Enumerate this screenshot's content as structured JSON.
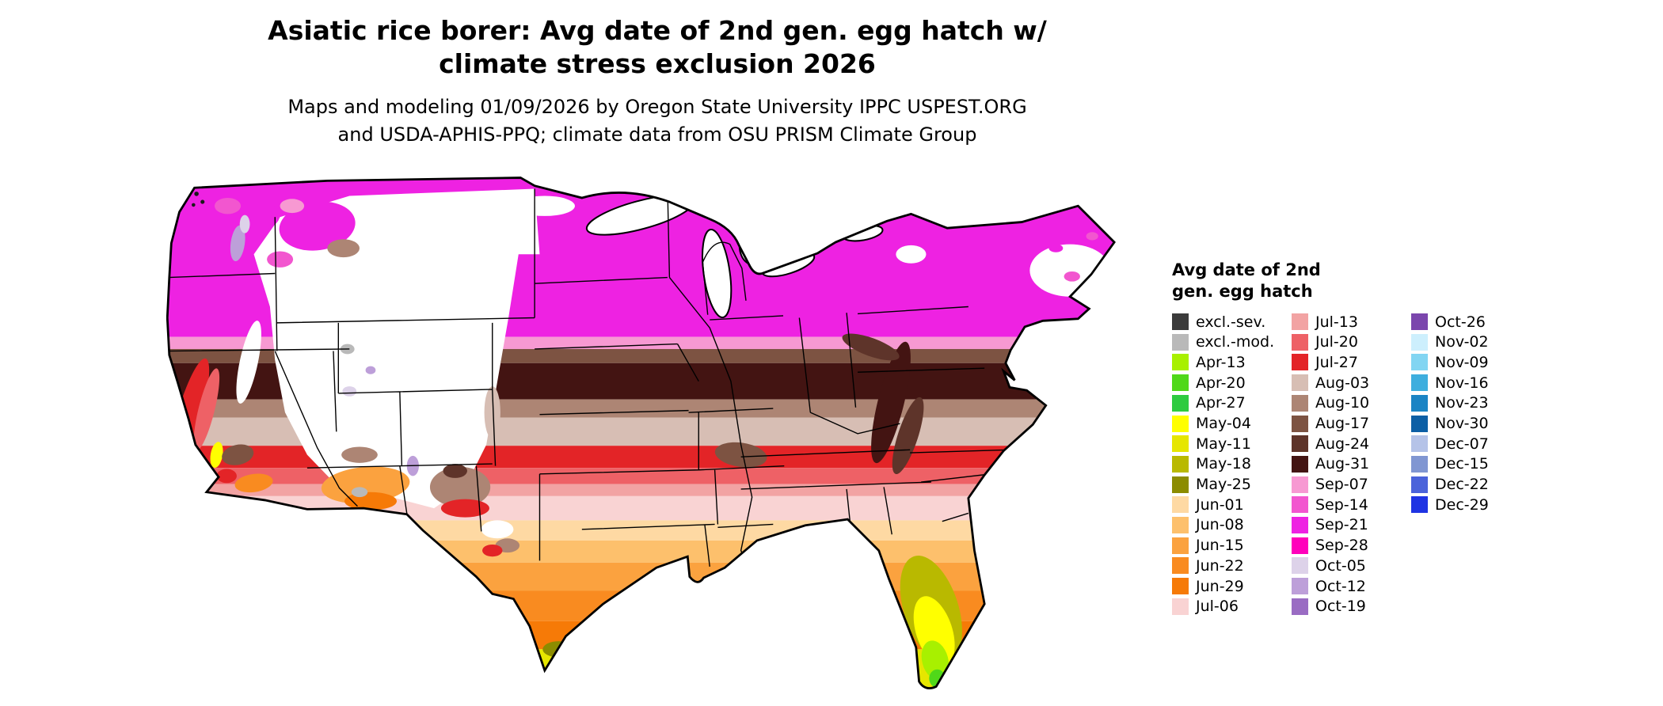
{
  "title": "Asiatic rice borer: Avg date of 2nd gen. egg hatch w/ climate stress exclusion 2026",
  "subtitle": "Maps and modeling 01/09/2026 by Oregon State University IPPC USPEST.ORG and USDA-APHIS-PPQ; climate data from OSU PRISM Climate Group",
  "colors": {
    "background": "#ffffff",
    "outline": "#000000",
    "water": "#ffffff"
  },
  "legend": {
    "heading": "Avg date of 2nd gen. egg hatch",
    "columns": [
      [
        {
          "label": "excl.-sev.",
          "color": "#3b3b3b"
        },
        {
          "label": "excl.-mod.",
          "color": "#b9b9b9"
        },
        {
          "label": "Apr-13",
          "color": "#a8f000"
        },
        {
          "label": "Apr-20",
          "color": "#50d819"
        },
        {
          "label": "Apr-27",
          "color": "#2ecb40"
        },
        {
          "label": "May-04",
          "color": "#ffff00"
        },
        {
          "label": "May-11",
          "color": "#e6e600"
        },
        {
          "label": "May-18",
          "color": "#b9b900"
        },
        {
          "label": "May-25",
          "color": "#8c8c00"
        },
        {
          "label": "Jun-01",
          "color": "#fed9a3"
        },
        {
          "label": "Jun-08",
          "color": "#fdc06c"
        },
        {
          "label": "Jun-15",
          "color": "#fba23f"
        },
        {
          "label": "Jun-22",
          "color": "#f98b20"
        },
        {
          "label": "Jun-29",
          "color": "#f67a07"
        },
        {
          "label": "Jul-06",
          "color": "#f9d3d3"
        }
      ],
      [
        {
          "label": "Jul-13",
          "color": "#f2a3a3"
        },
        {
          "label": "Jul-20",
          "color": "#ee6166"
        },
        {
          "label": "Jul-27",
          "color": "#e32427"
        },
        {
          "label": "Aug-03",
          "color": "#d7beb4"
        },
        {
          "label": "Aug-10",
          "color": "#ad8574"
        },
        {
          "label": "Aug-17",
          "color": "#7d5342"
        },
        {
          "label": "Aug-24",
          "color": "#5e342a"
        },
        {
          "label": "Aug-31",
          "color": "#431412"
        },
        {
          "label": "Sep-07",
          "color": "#f799d2"
        },
        {
          "label": "Sep-14",
          "color": "#f256cf"
        },
        {
          "label": "Sep-21",
          "color": "#ee22e2"
        },
        {
          "label": "Sep-28",
          "color": "#ff00bb"
        },
        {
          "label": "Oct-05",
          "color": "#ddd2e9"
        },
        {
          "label": "Oct-12",
          "color": "#bd9fd9"
        },
        {
          "label": "Oct-19",
          "color": "#9a6cc3"
        }
      ],
      [
        {
          "label": "Oct-26",
          "color": "#7b46ad"
        },
        {
          "label": "Nov-02",
          "color": "#cdeffd"
        },
        {
          "label": "Nov-09",
          "color": "#82d5f2"
        },
        {
          "label": "Nov-16",
          "color": "#3eaede"
        },
        {
          "label": "Nov-23",
          "color": "#1b84c4"
        },
        {
          "label": "Nov-30",
          "color": "#0c5fa5"
        },
        {
          "label": "Dec-07",
          "color": "#b5c3e8"
        },
        {
          "label": "Dec-15",
          "color": "#8096d2"
        },
        {
          "label": "Dec-22",
          "color": "#4b63da"
        },
        {
          "label": "Dec-29",
          "color": "#1f34e3"
        }
      ]
    ]
  }
}
